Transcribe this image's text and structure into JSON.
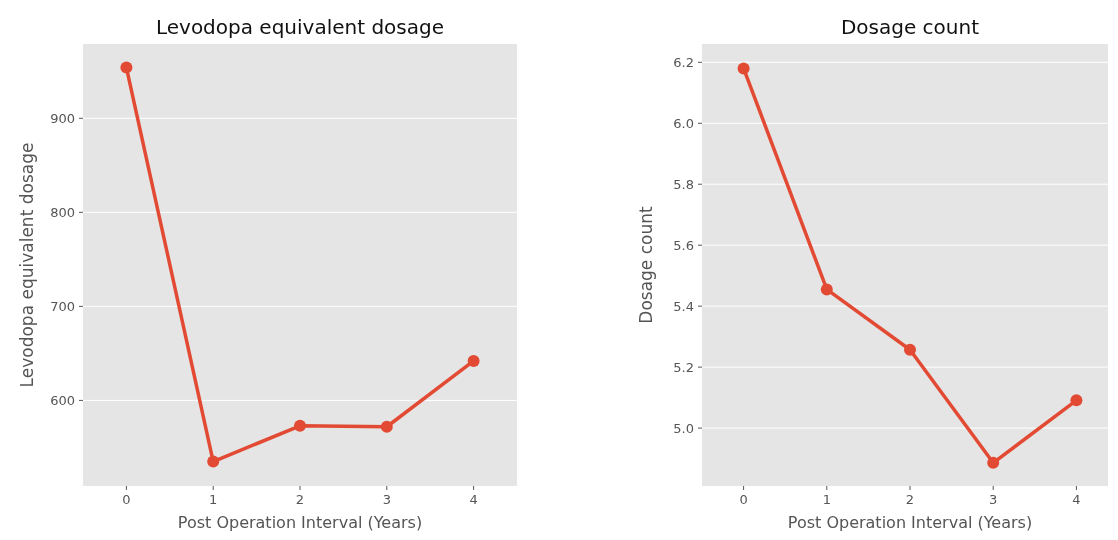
{
  "chart_data": [
    {
      "type": "line",
      "title": "Levodopa equivalent dosage",
      "xlabel": "Post Operation Interval (Years)",
      "ylabel": "Levodopa equivalent dosage",
      "categories": [
        "0",
        "1",
        "2",
        "3",
        "4"
      ],
      "series": [
        {
          "color": "#e24a33",
          "values": [
            954,
            535,
            573,
            572,
            642
          ]
        }
      ],
      "ylim": [
        509,
        979
      ],
      "yticks": [
        600,
        700,
        800,
        900
      ],
      "grid": "y",
      "marker": "circle",
      "line_style": "solid"
    },
    {
      "type": "line",
      "title": "Dosage count",
      "xlabel": "Post Operation Interval (Years)",
      "ylabel": "Dosage count",
      "categories": [
        "0",
        "1",
        "2",
        "3",
        "4"
      ],
      "series": [
        {
          "color": "#e24a33",
          "values": [
            6.18,
            5.455,
            5.257,
            4.886,
            5.091
          ]
        }
      ],
      "ylim": [
        4.81,
        6.26
      ],
      "yticks": [
        {
          "value": 5.0,
          "label": "5.0"
        },
        {
          "value": 5.2,
          "label": "5.2"
        },
        {
          "value": 5.4,
          "label": "5.4"
        },
        {
          "value": 5.6,
          "label": "5.6"
        },
        {
          "value": 5.8,
          "label": "5.8"
        },
        {
          "value": 6.0,
          "label": "6.0"
        },
        {
          "value": 6.2,
          "label": "6.2"
        }
      ],
      "grid": "y",
      "marker": "circle",
      "line_style": "solid"
    }
  ]
}
